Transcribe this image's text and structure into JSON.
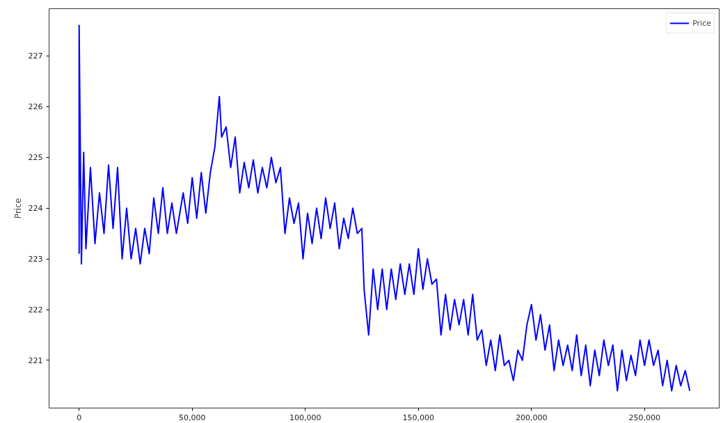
{
  "chart_data": {
    "type": "line",
    "ylabel": "Price",
    "x": [
      0,
      0,
      1000,
      2000,
      3000,
      5000,
      7000,
      9000,
      11000,
      13000,
      15000,
      17000,
      19000,
      21000,
      23000,
      25000,
      27000,
      29000,
      31000,
      33000,
      35000,
      37000,
      39000,
      41000,
      43000,
      46000,
      48000,
      50000,
      52000,
      54000,
      56000,
      58000,
      60000,
      62000,
      63000,
      65000,
      67000,
      69000,
      71000,
      73000,
      75000,
      77000,
      79000,
      81000,
      83000,
      85000,
      87000,
      89000,
      91000,
      93000,
      95000,
      97000,
      99000,
      101000,
      103000,
      105000,
      107000,
      109000,
      111000,
      113000,
      115000,
      117000,
      119000,
      121000,
      123000,
      125000,
      126000,
      128000,
      130000,
      132000,
      134000,
      136000,
      138000,
      140000,
      142000,
      144000,
      146000,
      148000,
      150000,
      152000,
      154000,
      156000,
      158000,
      160000,
      162000,
      164000,
      166000,
      168000,
      170000,
      172000,
      174000,
      176000,
      178000,
      180000,
      182000,
      184000,
      186000,
      188000,
      190000,
      192000,
      194000,
      196000,
      198000,
      200000,
      202000,
      204000,
      206000,
      208000,
      210000,
      212000,
      214000,
      216000,
      218000,
      220000,
      222000,
      224000,
      226000,
      228000,
      230000,
      232000,
      234000,
      236000,
      238000,
      240000,
      242000,
      244000,
      246000,
      248000,
      250000,
      252000,
      254000,
      256000,
      258000,
      260000,
      262000,
      264000,
      266000,
      268000,
      270000
    ],
    "series": [
      {
        "name": "Price",
        "color": "#0000ff",
        "values": [
          223.1,
          227.6,
          222.9,
          225.1,
          223.2,
          224.8,
          223.3,
          224.3,
          223.5,
          224.85,
          223.6,
          224.8,
          223.0,
          224.0,
          223.0,
          223.6,
          222.9,
          223.6,
          223.1,
          224.2,
          223.5,
          224.4,
          223.5,
          224.1,
          223.5,
          224.3,
          223.7,
          224.6,
          223.8,
          224.7,
          223.9,
          224.7,
          225.2,
          226.2,
          225.4,
          225.6,
          224.8,
          225.4,
          224.3,
          224.9,
          224.4,
          224.95,
          224.3,
          224.8,
          224.4,
          225.0,
          224.5,
          224.8,
          223.5,
          224.2,
          223.7,
          224.1,
          223.0,
          223.9,
          223.3,
          224.0,
          223.4,
          224.2,
          223.6,
          224.1,
          223.2,
          223.8,
          223.4,
          224.0,
          223.5,
          223.6,
          222.4,
          221.5,
          222.8,
          222.0,
          222.8,
          222.0,
          222.8,
          222.2,
          222.9,
          222.3,
          222.9,
          222.3,
          223.2,
          222.4,
          223.0,
          222.5,
          222.6,
          221.5,
          222.3,
          221.6,
          222.2,
          221.7,
          222.2,
          221.5,
          222.3,
          221.4,
          221.6,
          220.9,
          221.4,
          220.8,
          221.5,
          220.9,
          221.0,
          220.6,
          221.2,
          221.0,
          221.7,
          222.1,
          221.4,
          221.9,
          221.2,
          221.7,
          220.8,
          221.4,
          220.9,
          221.3,
          220.8,
          221.5,
          220.7,
          221.3,
          220.5,
          221.2,
          220.7,
          221.4,
          220.9,
          221.3,
          220.4,
          221.2,
          220.6,
          221.1,
          220.7,
          221.4,
          220.9,
          221.4,
          220.9,
          221.2,
          220.5,
          221.0,
          220.4,
          220.9,
          220.5,
          220.8,
          220.4
        ]
      }
    ],
    "xlim": [
      -13300,
      283000
    ],
    "ylim": [
      220.06,
      227.93
    ],
    "xticks": [
      0,
      {
        "value": 50000,
        "label": "50,000"
      },
      {
        "value": 100000,
        "label": "100,000"
      },
      {
        "value": 150000,
        "label": "150,000"
      },
      {
        "value": 200000,
        "label": "200,000"
      },
      {
        "value": 250000,
        "label": "250,000"
      }
    ],
    "yticks": [
      221,
      222,
      223,
      224,
      225,
      226,
      227
    ],
    "legend": "top right",
    "grid": false,
    "line_style": "solid"
  }
}
